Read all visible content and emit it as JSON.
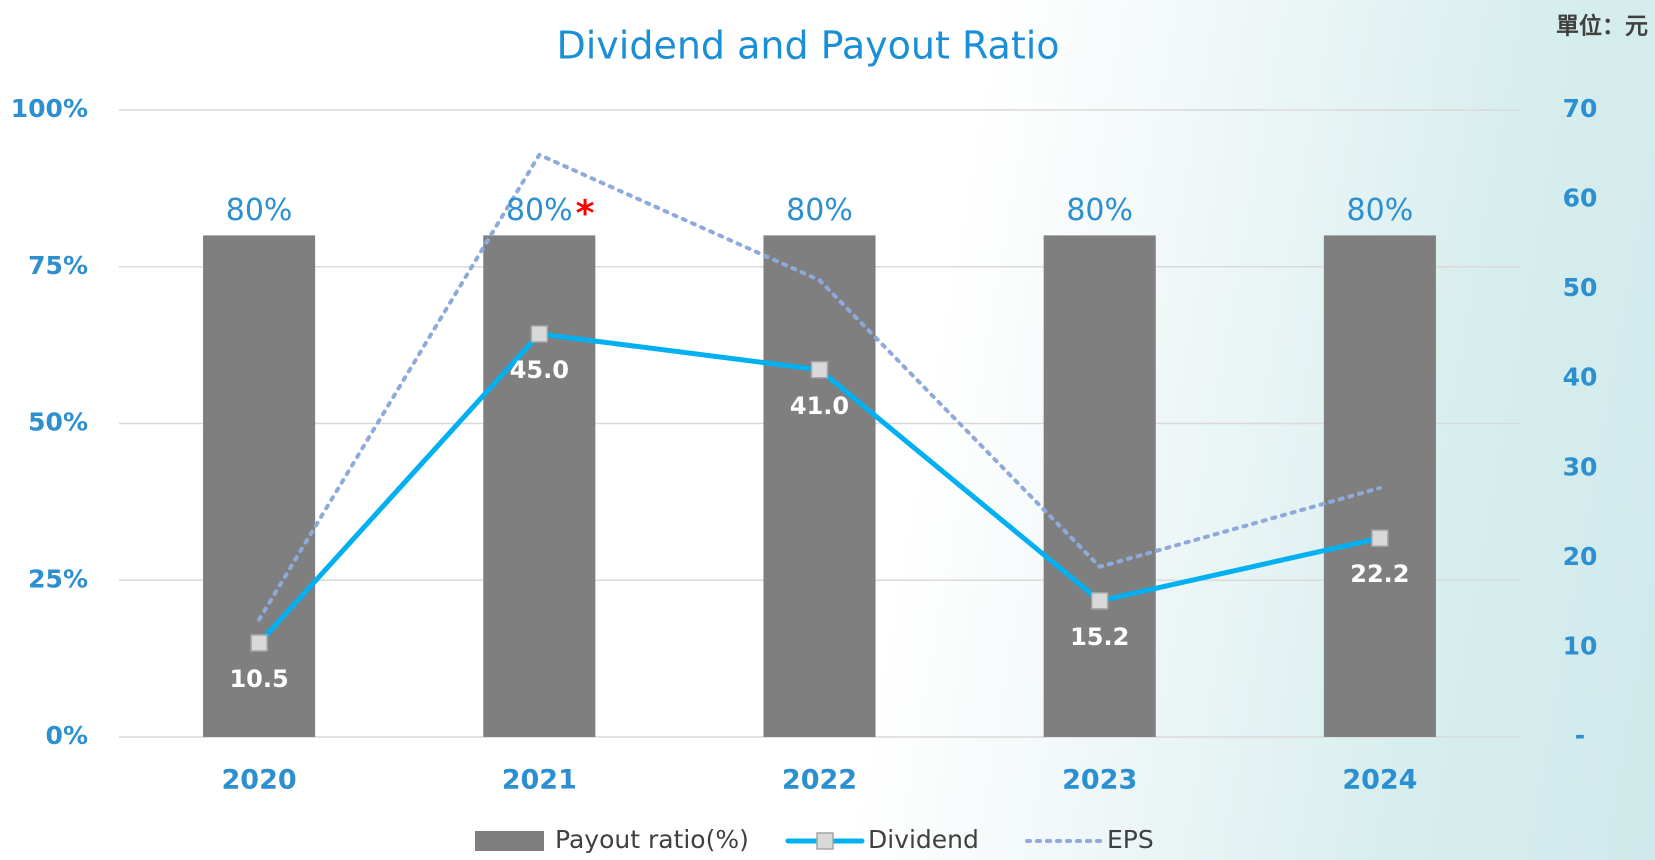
{
  "chart_data": {
    "type": "combo",
    "title": "Dividend and Payout Ratio",
    "unit_label": "單位：元",
    "annotation": "*",
    "annotation_color": "#ff0000",
    "categories": [
      "2020",
      "2021",
      "2022",
      "2023",
      "2024"
    ],
    "series": [
      {
        "name": "Payout ratio(%)",
        "kind": "bar",
        "axis": "y",
        "color": "#7f7f7f",
        "label_color": "#2b8fd0",
        "values": [
          80,
          80,
          80,
          80,
          80
        ],
        "value_labels": [
          "80%",
          "80%",
          "80%",
          "80%",
          "80%"
        ]
      },
      {
        "name": "Dividend",
        "kind": "line",
        "axis": "y2",
        "color": "#00b0f0",
        "marker": "square",
        "label_color": "#ffffff",
        "values": [
          10.5,
          45,
          41,
          15.2,
          22.2
        ],
        "value_labels": [
          "10.5",
          "45.0",
          "41.0",
          "15.2",
          "22.2"
        ]
      },
      {
        "name": "EPS",
        "kind": "line",
        "axis": "y2",
        "color": "#8eaadb",
        "dashed": true,
        "values": [
          13.1,
          65,
          51,
          19,
          27.8
        ]
      }
    ],
    "ylim": [
      0,
      100
    ],
    "yticks": [
      {
        "value": 0,
        "label": "0%"
      },
      {
        "value": 25,
        "label": "25%"
      },
      {
        "value": 50,
        "label": "50%"
      },
      {
        "value": 75,
        "label": "75%"
      },
      {
        "value": 100,
        "label": "100%"
      }
    ],
    "y2lim": [
      0,
      70
    ],
    "y2ticks": [
      {
        "value": 0,
        "label": "-"
      },
      10,
      20,
      30,
      40,
      50,
      60,
      70
    ],
    "grid": true
  }
}
